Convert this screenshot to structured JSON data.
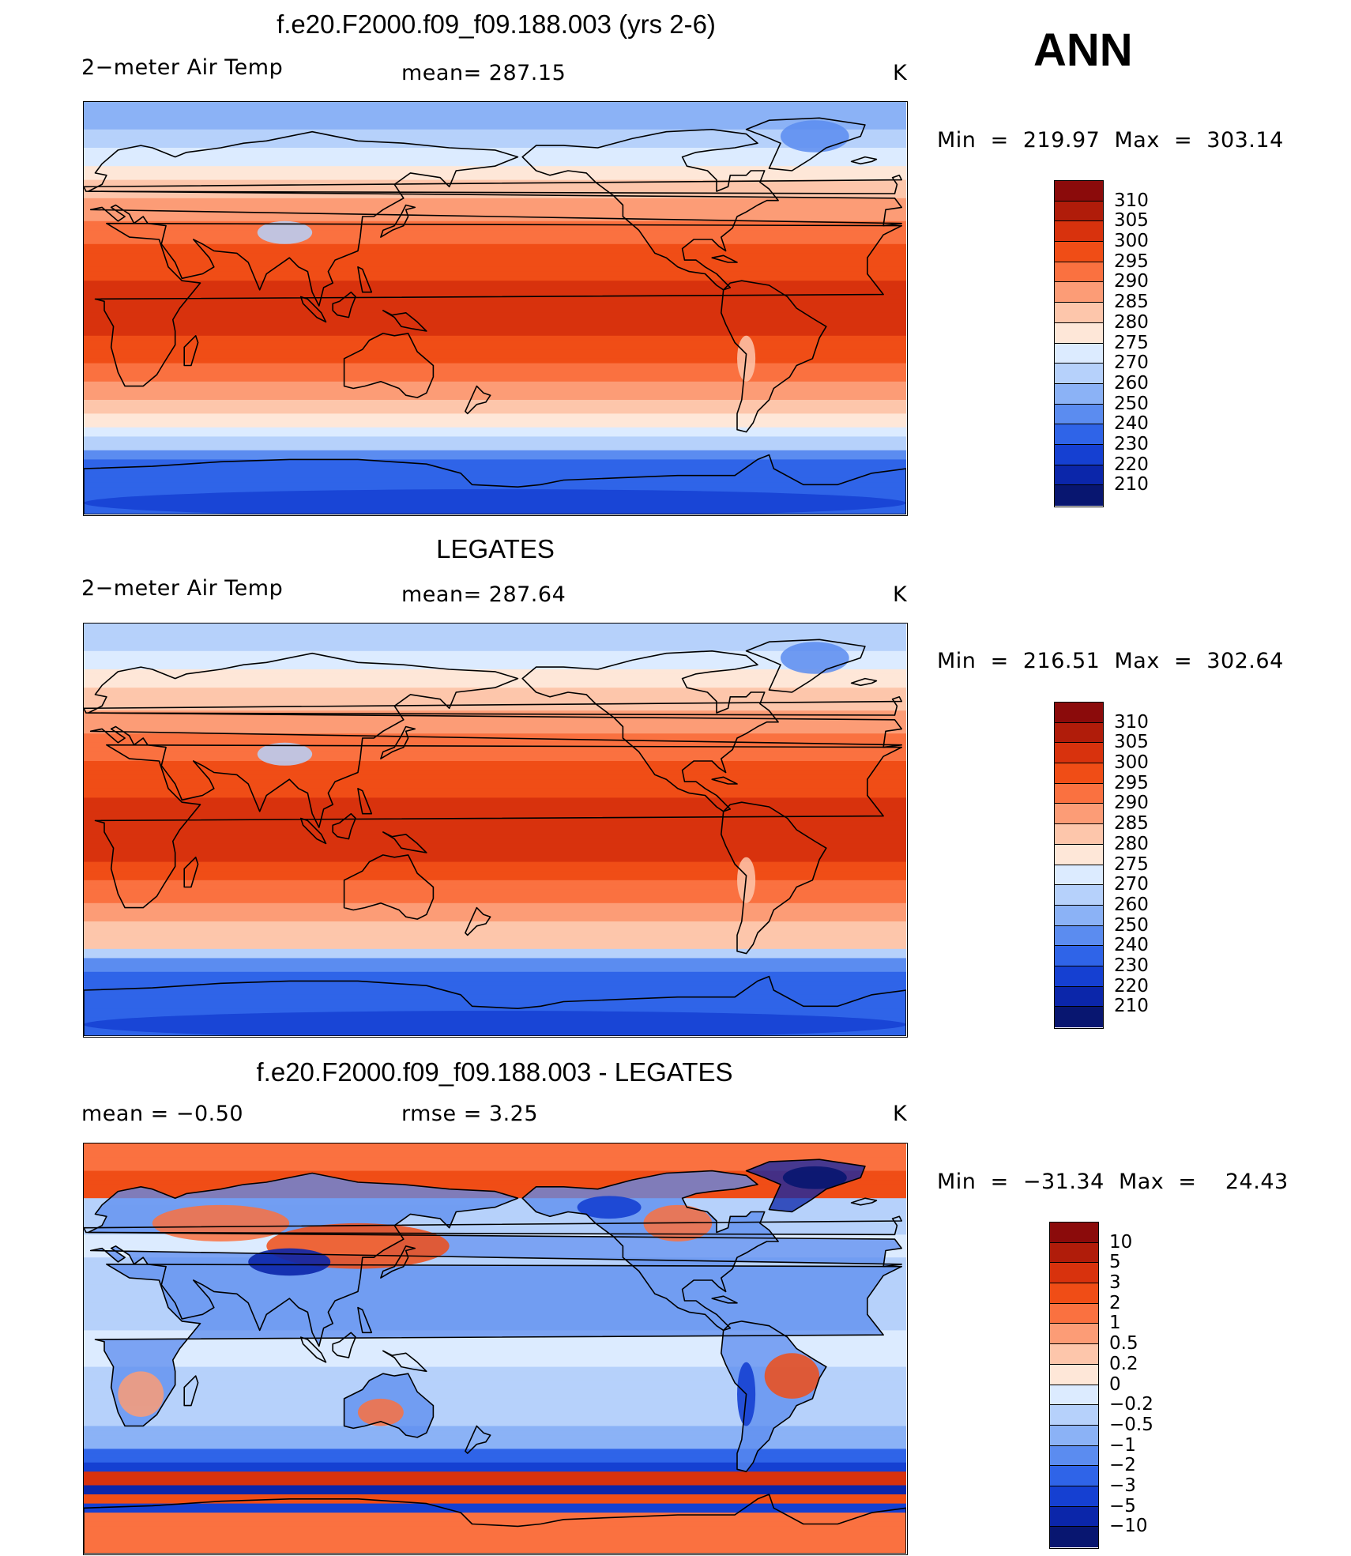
{
  "season": "ANN",
  "panels": [
    {
      "id": "model",
      "title": "f.e20.F2000.f09_f09.188.003 (yrs 2-6)",
      "left_label": "2−meter Air Temp",
      "center_label": "mean=  287.15",
      "units": "K",
      "minmax": "Min  =  219.97  Max  =  303.14",
      "cbar_levels": [
        "310",
        "305",
        "300",
        "295",
        "290",
        "285",
        "280",
        "275",
        "270",
        "260",
        "250",
        "240",
        "230",
        "220",
        "210"
      ],
      "cbar_colors": [
        "#8b0b0b",
        "#b01c0a",
        "#d8320d",
        "#f04d16",
        "#fa7140",
        "#fc9c76",
        "#fdc6ab",
        "#fee7d8",
        "#dcebff",
        "#b6d1fb",
        "#8bb2f6",
        "#5b8cf0",
        "#2f64e8",
        "#1540d2",
        "#0b26aa",
        "#081670"
      ],
      "field": "model"
    },
    {
      "id": "obs",
      "title": "LEGATES",
      "left_label": "2−meter Air Temp",
      "center_label": "mean=  287.64",
      "units": "K",
      "minmax": "Min  =  216.51  Max  =  302.64",
      "cbar_levels": [
        "310",
        "305",
        "300",
        "295",
        "290",
        "285",
        "280",
        "275",
        "270",
        "260",
        "250",
        "240",
        "230",
        "220",
        "210"
      ],
      "cbar_colors": [
        "#8b0b0b",
        "#b01c0a",
        "#d8320d",
        "#f04d16",
        "#fa7140",
        "#fc9c76",
        "#fdc6ab",
        "#fee7d8",
        "#dcebff",
        "#b6d1fb",
        "#8bb2f6",
        "#5b8cf0",
        "#2f64e8",
        "#1540d2",
        "#0b26aa",
        "#081670"
      ],
      "field": "obs"
    },
    {
      "id": "diff",
      "title": "f.e20.F2000.f09_f09.188.003 - LEGATES",
      "left_label": "mean  =    −0.50",
      "center_label": "rmse  =     3.25",
      "units": "K",
      "minmax": "Min  =  −31.34  Max  =    24.43",
      "cbar_levels": [
        "10",
        "5",
        "3",
        "2",
        "1",
        "0.5",
        "0.2",
        "0",
        "−0.2",
        "−0.5",
        "−1",
        "−2",
        "−3",
        "−5",
        "−10"
      ],
      "cbar_colors": [
        "#8b0b0b",
        "#b01c0a",
        "#d8320d",
        "#f04d16",
        "#fa7140",
        "#fc9c76",
        "#fdc6ab",
        "#fee7d8",
        "#dcebff",
        "#b6d1fb",
        "#8bb2f6",
        "#5b8cf0",
        "#2f64e8",
        "#1540d2",
        "#0b26aa",
        "#081670"
      ],
      "field": "diff"
    }
  ]
}
